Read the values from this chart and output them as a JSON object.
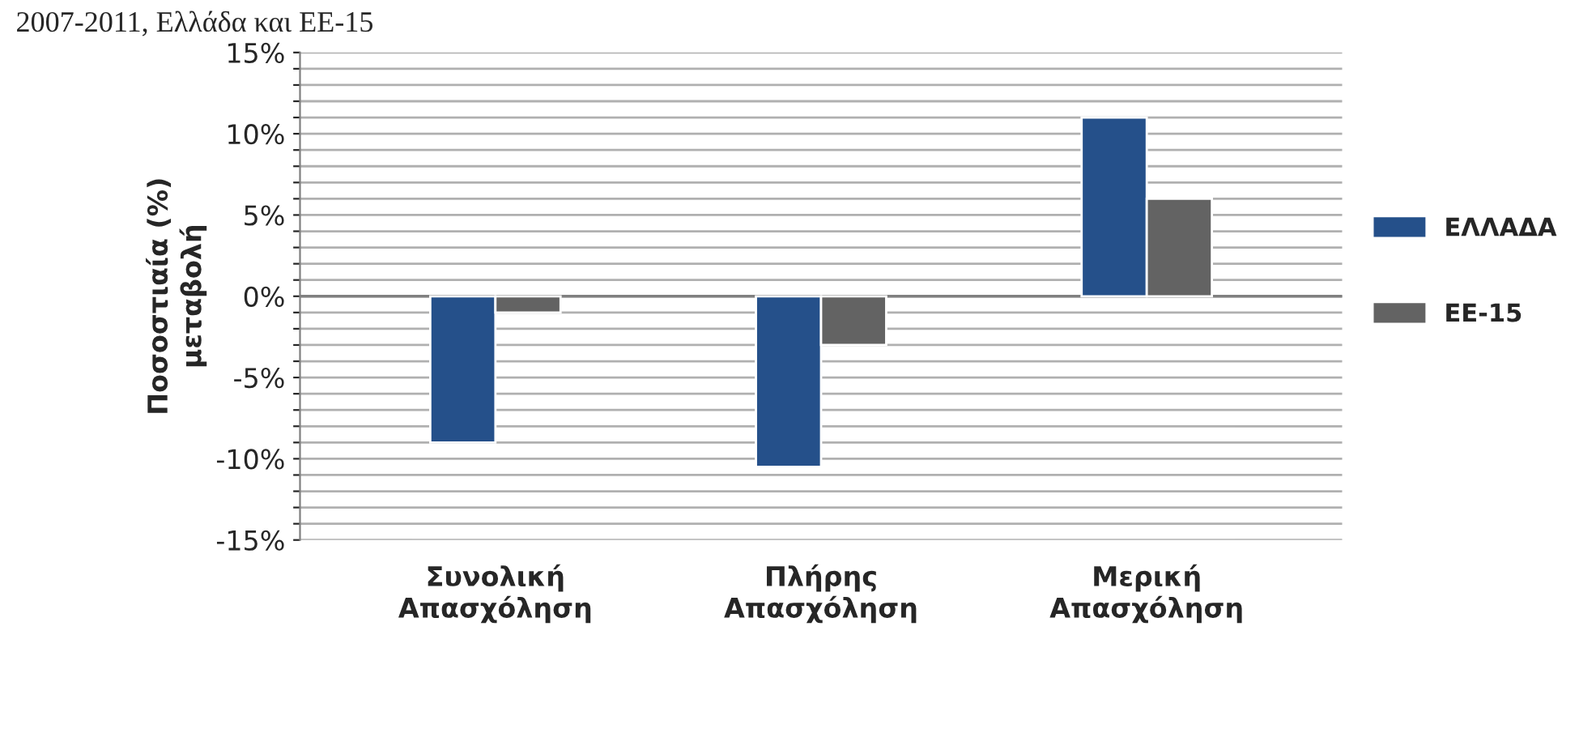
{
  "chart_data": {
    "type": "bar",
    "title": "2007-2011, Ελλάδα και ΕΕ-15",
    "ylabel": "Ποσοστιαία (%)\nμεταβολή",
    "categories": [
      "Συνολική\nΑπασχόληση",
      "Πλήρης\nΑπασχόληση",
      "Μερική\nΑπασχόληση"
    ],
    "series": [
      {
        "name": "ΕΛΛΑΔΑ",
        "color": "#25508a",
        "values": [
          -9,
          -10.5,
          11
        ]
      },
      {
        "name": "ΕΕ-15",
        "color": "#636363",
        "values": [
          -1,
          -3,
          6
        ]
      }
    ],
    "ylim": [
      -15,
      15
    ],
    "yticks": [
      {
        "value": -15,
        "label": "-15%"
      },
      {
        "value": -14,
        "label": null
      },
      {
        "value": -13,
        "label": null
      },
      {
        "value": -12,
        "label": null
      },
      {
        "value": -11,
        "label": null
      },
      {
        "value": -10,
        "label": "-10%"
      },
      {
        "value": -9,
        "label": null
      },
      {
        "value": -8,
        "label": null
      },
      {
        "value": -7,
        "label": null
      },
      {
        "value": -6,
        "label": null
      },
      {
        "value": -5,
        "label": "-5%"
      },
      {
        "value": -4,
        "label": null
      },
      {
        "value": -3,
        "label": null
      },
      {
        "value": -2,
        "label": null
      },
      {
        "value": -1,
        "label": null
      },
      {
        "value": 0,
        "label": "0%"
      },
      {
        "value": 1,
        "label": null
      },
      {
        "value": 2,
        "label": null
      },
      {
        "value": 3,
        "label": null
      },
      {
        "value": 4,
        "label": null
      },
      {
        "value": 5,
        "label": "5%"
      },
      {
        "value": 6,
        "label": null
      },
      {
        "value": 7,
        "label": null
      },
      {
        "value": 8,
        "label": null
      },
      {
        "value": 9,
        "label": null
      },
      {
        "value": 10,
        "label": "10%"
      },
      {
        "value": 11,
        "label": null
      },
      {
        "value": 12,
        "label": null
      },
      {
        "value": 13,
        "label": null
      },
      {
        "value": 14,
        "label": null
      },
      {
        "value": 15,
        "label": "15%"
      }
    ],
    "grid": "y",
    "legend": "right"
  }
}
